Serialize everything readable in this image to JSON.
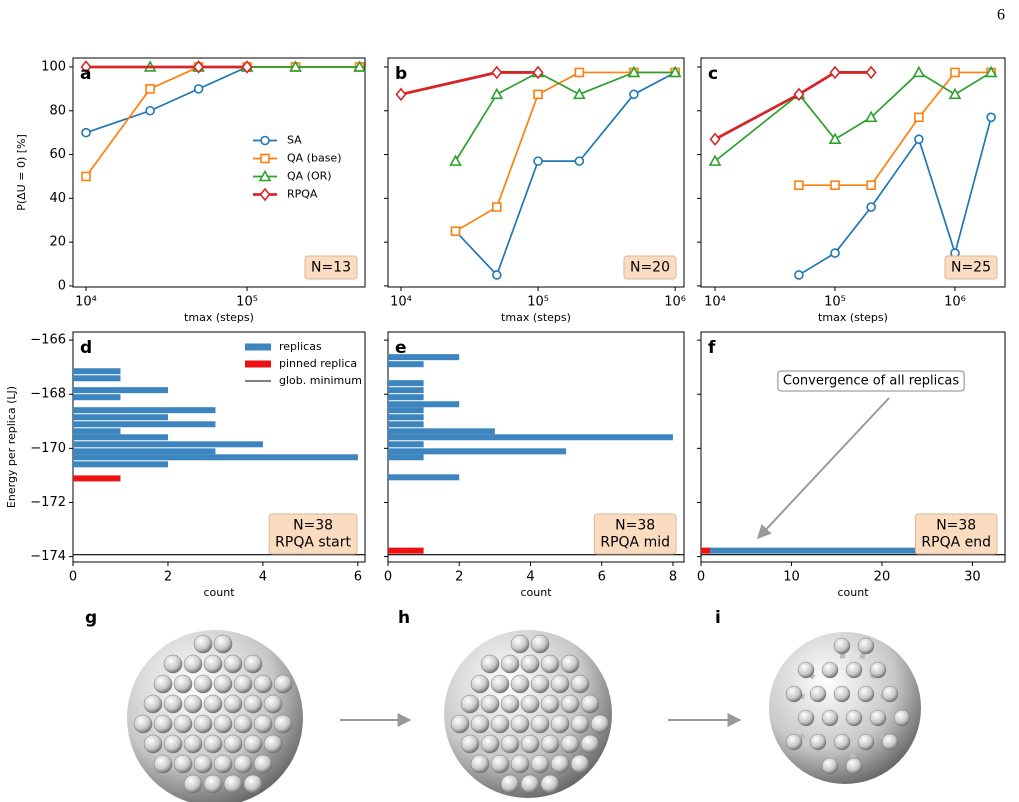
{
  "page_number": "6",
  "chart_data": [
    {
      "type": "line",
      "panel_label": "a",
      "xscale": "log",
      "xlim": [
        8300,
        540000
      ],
      "xticks": [
        {
          "value": 10000,
          "label": "10⁴"
        },
        {
          "value": 100000,
          "label": "10⁵"
        }
      ],
      "ylim": [
        -0.5,
        104.1
      ],
      "yticks": [
        0,
        20,
        40,
        60,
        80,
        100
      ],
      "y_label": "P(ΔU = 0) [%]",
      "x_label": "tmax (steps)",
      "legend": "center right",
      "annotation": [
        "N=13"
      ],
      "series": [
        {
          "name": "SA",
          "color": "#1f77b4",
          "marker": "o",
          "x": [
            10000,
            25000,
            50000,
            100000,
            200000,
            500000
          ],
          "values": [
            70,
            80,
            90,
            100,
            100,
            100
          ]
        },
        {
          "name": "QA (base)",
          "color": "#ff7f0e",
          "marker": "s",
          "x": [
            10000,
            25000,
            50000,
            100000,
            200000,
            500000
          ],
          "values": [
            50,
            90,
            100,
            100,
            100,
            100
          ]
        },
        {
          "name": "QA (OR)",
          "color": "#2ca02c",
          "marker": "^",
          "x": [
            25000,
            50000,
            100000,
            200000,
            500000
          ],
          "values": [
            100,
            100,
            100,
            100,
            100
          ]
        },
        {
          "name": "RPQA",
          "color": "#d62728",
          "marker": "D",
          "x": [
            10000,
            50000,
            100000
          ],
          "values": [
            100,
            100,
            100
          ]
        }
      ]
    },
    {
      "type": "line",
      "panel_label": "b",
      "xscale": "log",
      "xlim": [
        8040,
        1160000
      ],
      "xticks": [
        {
          "value": 10000,
          "label": "10⁴"
        },
        {
          "value": 100000,
          "label": "10⁵"
        },
        {
          "value": 1000000,
          "label": "10⁶"
        }
      ],
      "ylim": [
        -0.5,
        104.1
      ],
      "yticks": [
        0,
        20,
        40,
        60,
        80,
        100
      ],
      "ytick_labels": false,
      "x_label": "tmax (steps)",
      "annotation": [
        "N=20"
      ],
      "series": [
        {
          "color": "#1f77b4",
          "marker": "o",
          "x": [
            25000,
            50000,
            100000,
            200000,
            500000,
            1000000
          ],
          "values": [
            25,
            5,
            57,
            57,
            87.5,
            97.5
          ]
        },
        {
          "color": "#ff7f0e",
          "marker": "s",
          "x": [
            25000,
            50000,
            100000,
            200000,
            500000,
            1000000
          ],
          "values": [
            25,
            36,
            87.5,
            97.5,
            97.5,
            97.5
          ]
        },
        {
          "color": "#2ca02c",
          "marker": "^",
          "x": [
            25000,
            50000,
            100000,
            200000,
            500000,
            1000000
          ],
          "values": [
            57,
            87.5,
            97.5,
            87.5,
            97.5,
            97.5
          ]
        },
        {
          "color": "#d62728",
          "marker": "D",
          "x": [
            10000,
            50000,
            100000
          ],
          "values": [
            87.5,
            97.5,
            97.5
          ]
        }
      ]
    },
    {
      "type": "line",
      "panel_label": "c",
      "xscale": "log",
      "xlim": [
        7640,
        2610000
      ],
      "xticks": [
        {
          "value": 10000,
          "label": "10⁴"
        },
        {
          "value": 100000,
          "label": "10⁵"
        },
        {
          "value": 1000000,
          "label": "10⁶"
        }
      ],
      "ylim": [
        -0.5,
        104.1
      ],
      "yticks": [
        0,
        20,
        40,
        60,
        80,
        100
      ],
      "ytick_labels": false,
      "x_label": "tmax (steps)",
      "annotation": [
        "N=25"
      ],
      "series": [
        {
          "color": "#1f77b4",
          "marker": "o",
          "x": [
            50000,
            100000,
            200000,
            500000,
            1000000,
            2000000
          ],
          "values": [
            5,
            15,
            36,
            67,
            15,
            77
          ]
        },
        {
          "color": "#ff7f0e",
          "marker": "s",
          "x": [
            50000,
            100000,
            200000,
            500000,
            1000000,
            2000000
          ],
          "values": [
            46,
            46,
            46,
            77,
            97.5,
            97.5
          ]
        },
        {
          "color": "#2ca02c",
          "marker": "^",
          "x": [
            10000,
            50000,
            100000,
            200000,
            500000,
            1000000,
            2000000
          ],
          "values": [
            57,
            87.5,
            67,
            77,
            97.5,
            87.5,
            97.5
          ]
        },
        {
          "color": "#d62728",
          "marker": "D",
          "x": [
            10000,
            50000,
            100000,
            200000
          ],
          "values": [
            67,
            87.5,
            97.5,
            97.5
          ]
        }
      ]
    },
    {
      "type": "barh",
      "panel_label": "d",
      "xlim": [
        0,
        6.15
      ],
      "xticks": [
        0,
        2,
        4,
        6
      ],
      "ylim": [
        -174.2,
        -165.7
      ],
      "yticks": [
        {
          "value": -166,
          "label": "−166"
        },
        {
          "value": -168,
          "label": "−168"
        },
        {
          "value": -170,
          "label": "−170"
        },
        {
          "value": -172,
          "label": "−172"
        },
        {
          "value": -174,
          "label": "−174"
        }
      ],
      "y_label": "Energy per replica (LJ)",
      "x_label": "count",
      "legend": "upper right",
      "annotation": [
        "N=38",
        "RPQA start"
      ],
      "series": [
        {
          "name": "replicas",
          "color": "#3d85be",
          "y": [
            -167.15,
            -167.41,
            -167.85,
            -168.11,
            -168.59,
            -168.85,
            -169.11,
            -169.37,
            -169.59,
            -169.85,
            -170.11,
            -170.33,
            -170.59
          ],
          "values": [
            1,
            1,
            2,
            1,
            3,
            2,
            3,
            1,
            2,
            4,
            3,
            6,
            2
          ]
        },
        {
          "name": "pinned replica",
          "color": "#ee1111",
          "y": [
            -171.11
          ],
          "values": [
            1
          ]
        }
      ],
      "reference_line": {
        "name": "glob. minimum",
        "value": -173.93,
        "color": "#000000"
      }
    },
    {
      "type": "barh",
      "panel_label": "e",
      "xlim": [
        0,
        8.31
      ],
      "xticks": [
        0,
        2,
        4,
        6,
        8
      ],
      "ylim": [
        -174.2,
        -165.7
      ],
      "yticks": [
        -166,
        -168,
        -170,
        -172,
        -174
      ],
      "ytick_labels": false,
      "x_label": "count",
      "annotation": [
        "N=38",
        "RPQA mid"
      ],
      "series": [
        {
          "color": "#3d85be",
          "y": [
            -166.63,
            -166.89,
            -167.59,
            -167.85,
            -168.11,
            -168.37,
            -168.59,
            -168.85,
            -169.11,
            -169.37,
            -169.59,
            -169.85,
            -170.11,
            -170.33,
            -171.07
          ],
          "values": [
            2,
            1,
            1,
            1,
            1,
            2,
            1,
            1,
            1,
            3,
            8,
            1,
            5,
            1,
            2
          ]
        },
        {
          "color": "#ee1111",
          "y": [
            -173.78
          ],
          "values": [
            1
          ]
        }
      ],
      "reference_line": {
        "value": -173.93,
        "color": "#000000"
      }
    },
    {
      "type": "barh",
      "panel_label": "f",
      "stacked": true,
      "xlim": [
        0,
        33.6
      ],
      "xticks": [
        0,
        10,
        20,
        30
      ],
      "ylim": [
        -174.2,
        -165.7
      ],
      "yticks": [
        -166,
        -168,
        -170,
        -172,
        -174
      ],
      "ytick_labels": false,
      "x_label": "count",
      "annotation": [
        "N=38",
        "RPQA end"
      ],
      "note": "Convergence of all replicas",
      "series": [
        {
          "color": "#ee1111",
          "y": [
            -173.78
          ],
          "values": [
            1
          ]
        },
        {
          "color": "#3d85be",
          "y": [
            -173.78
          ],
          "values": [
            31
          ]
        }
      ],
      "reference_line": {
        "value": -173.93,
        "color": "#000000"
      }
    }
  ],
  "images": [
    {
      "label": "g"
    },
    {
      "label": "h"
    },
    {
      "label": "i"
    }
  ]
}
